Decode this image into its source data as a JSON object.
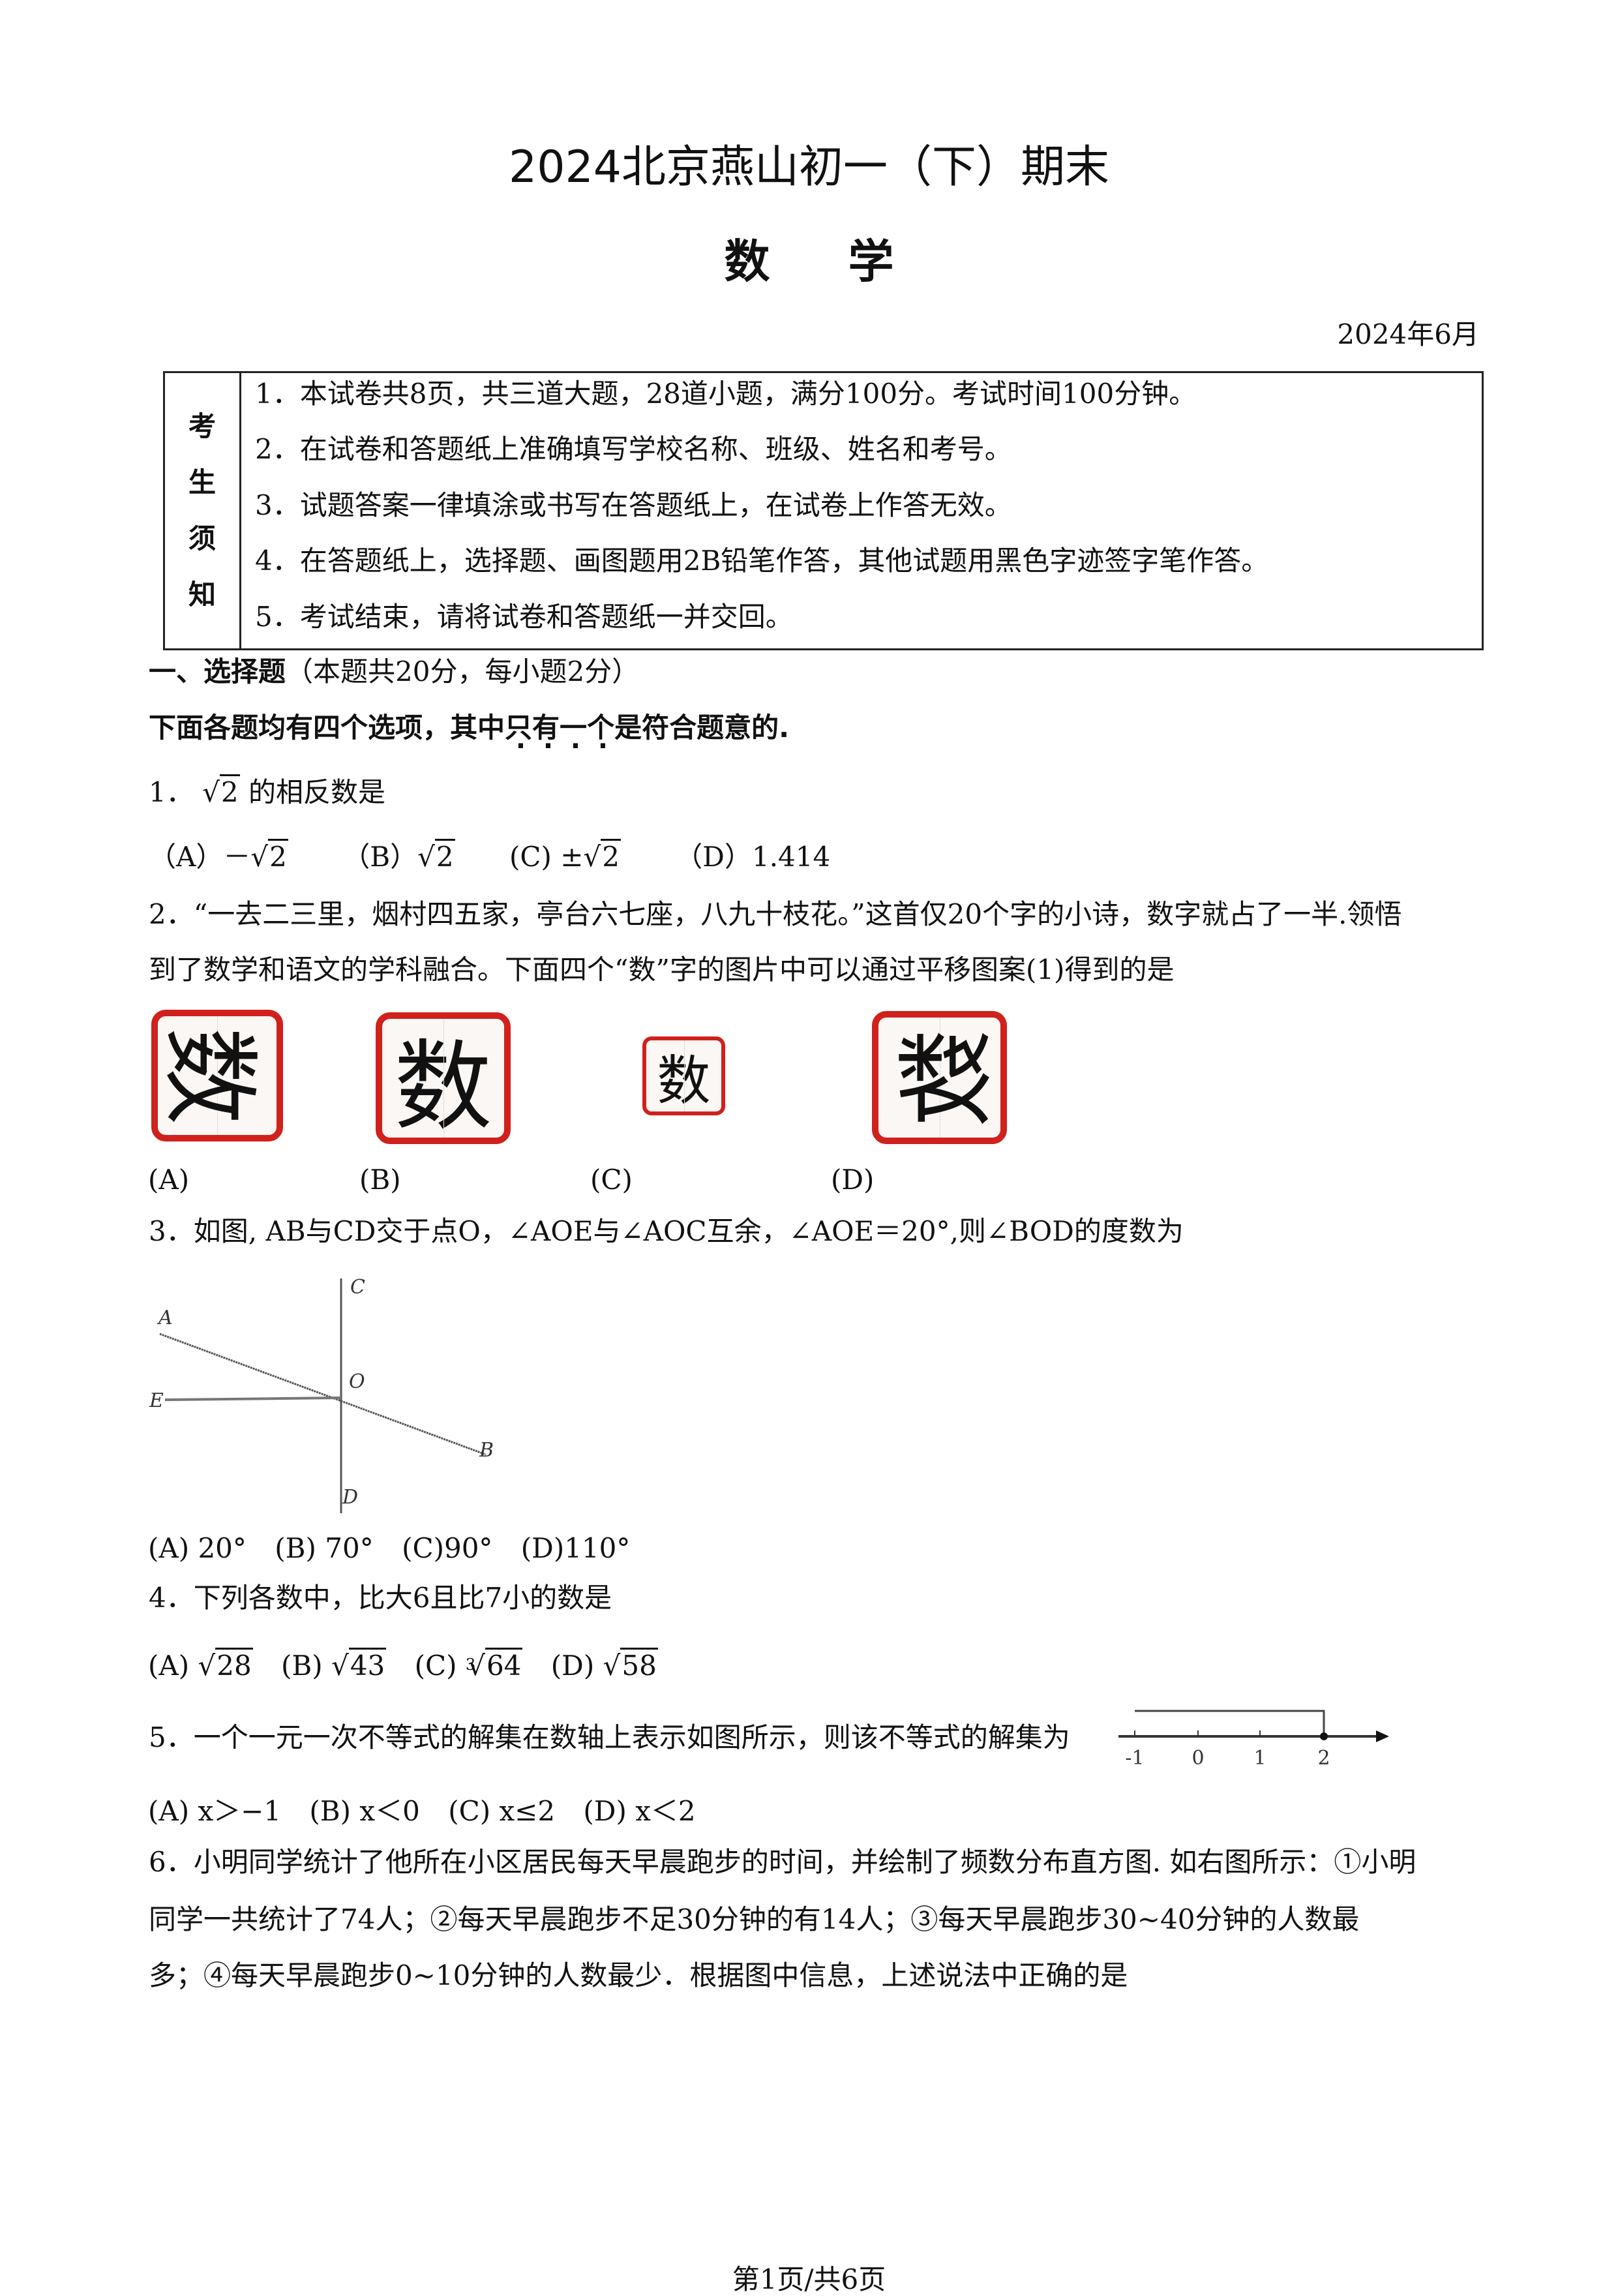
{
  "header": {
    "title": "2024北京燕山初一（下）期末",
    "subject": "数学",
    "date": "2024年6月"
  },
  "notice": {
    "label": [
      "考",
      "生",
      "须",
      "知"
    ],
    "items": [
      "1．本试卷共8页，共三道大题，28道小题，满分100分。考试时间100分钟。",
      "2．在试卷和答题纸上准确填写学校名称、班级、姓名和考号。",
      "3．试题答案一律填涂或书写在答题纸上，在试卷上作答无效。",
      "4．在答题纸上，选择题、画图题用2B铅笔作答，其他试题用黑色字迹签字笔作答。",
      "5．考试结束，请将试卷和答题纸一并交回。"
    ]
  },
  "section1": {
    "heading": "一、选择题",
    "heading_note": "（本题共20分，每小题2分）",
    "instruction_pre": "下面各题均有四个选项，其中",
    "instruction_dotted": [
      "只",
      "有",
      "一",
      "个"
    ],
    "instruction_post": "是符合题意的."
  },
  "q1": {
    "num": "1．",
    "radicand": "2",
    "text": "的相反数是",
    "options": [
      {
        "label": "（A）",
        "prefix": "－",
        "radicand": "2",
        "suffix": ""
      },
      {
        "label": "（B）",
        "prefix": "",
        "radicand": "2",
        "suffix": ""
      },
      {
        "label": "(C)",
        "prefix": "±",
        "radicand": "2",
        "suffix": ""
      },
      {
        "label": "（D）",
        "prefix": "1.414",
        "radicand": null,
        "suffix": ""
      }
    ]
  },
  "q2": {
    "line1": "2．“一去二三里，烟村四五家，亭台六七座，八九十枝花。”这首仅20个字的小诗，数字就占了一半.领悟",
    "line2": "到了数学和语文的学科融合。下面四个“数”字的图片中可以通过平移图案(1)得到的是",
    "glyph": "数",
    "border_color": "#d0211c",
    "options": [
      "(A)",
      "(B)",
      "(C)",
      "(D)"
    ]
  },
  "q3": {
    "text": "3．如图, AB与CD交于点O，∠AOE与∠AOC互余，∠AOE＝20°,则∠BOD的度数为",
    "points": [
      "A",
      "B",
      "C",
      "D",
      "E",
      "O"
    ],
    "options": [
      "(A) 20°",
      "(B) 70°",
      "(C)90°",
      "(D)110°"
    ]
  },
  "q4": {
    "text": "4．下列各数中，比大6且比7小的数是",
    "options": [
      {
        "label": "(A)",
        "index": "",
        "radicand": "28"
      },
      {
        "label": "(B)",
        "index": "",
        "radicand": "43"
      },
      {
        "label": "(C)",
        "index": "3",
        "radicand": "64"
      },
      {
        "label": "(D)",
        "index": "",
        "radicand": "58"
      }
    ]
  },
  "q5": {
    "text": "5．一个一元一次不等式的解集在数轴上表示如图所示，则该不等式的解集为",
    "axis_ticks": [
      "-1",
      "0",
      "1",
      "2"
    ],
    "options": [
      "(A)  x＞−1",
      "(B)  x＜0",
      "(C)  x≤2",
      "(D) x＜2"
    ]
  },
  "q6": {
    "lines": [
      "6．小明同学统计了他所在小区居民每天早晨跑步的时间，并绘制了频数分布直方图. 如右图所示：①小明",
      "同学一共统计了74人；②每天早晨跑步不足30分钟的有14人；③每天早晨跑步30~40分钟的人数最",
      "多；④每天早晨跑步0~10分钟的人数最少．根据图中信息，上述说法中正确的是"
    ]
  },
  "footer": {
    "page": "第1页/共6页"
  }
}
